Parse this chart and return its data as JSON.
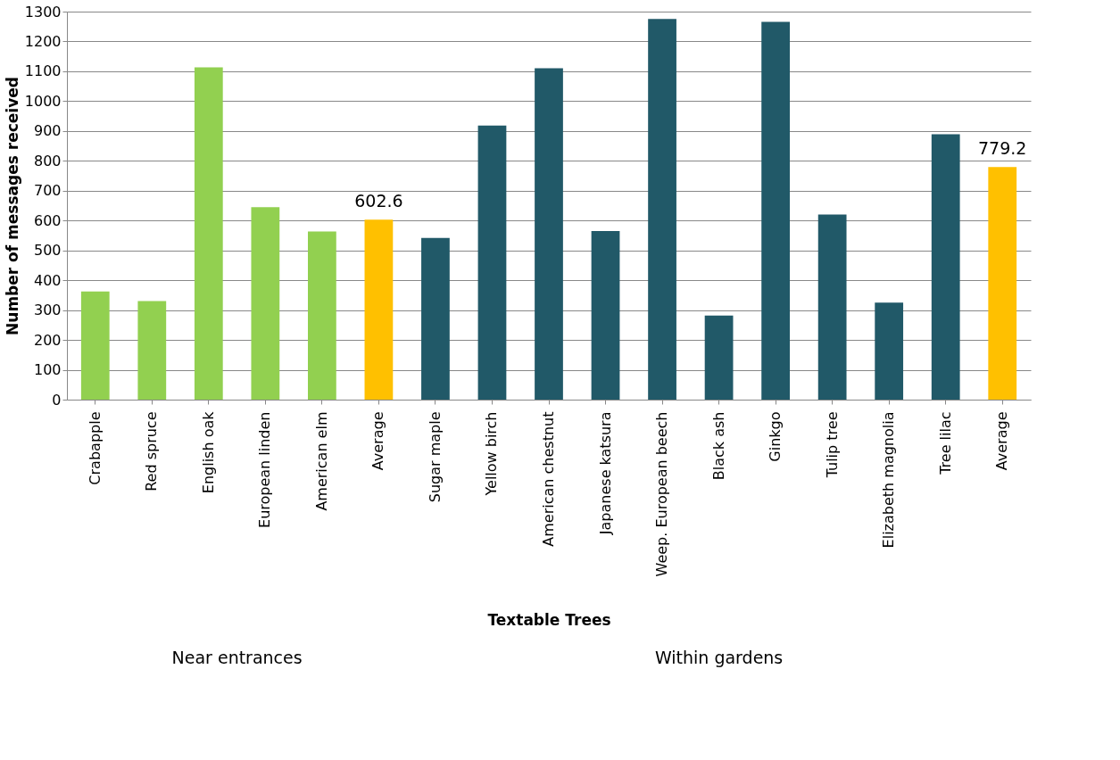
{
  "chart_data": {
    "type": "bar",
    "xlabel": "Textable Trees",
    "ylabel": "Number of messages received",
    "categories": [
      "Crabapple",
      "Red spruce",
      "English oak",
      "European linden",
      "American elm",
      "Average",
      "Sugar maple",
      "Yellow birch",
      "American chestnut",
      "Japanese katsura",
      "Weep. European beech",
      "Black ash",
      "Ginkgo",
      "Tulip tree",
      "Elizabeth magnolia",
      "Tree lilac",
      "Average"
    ],
    "values": [
      362,
      330,
      1113,
      645,
      563,
      602.6,
      542,
      918,
      1110,
      565,
      1275,
      282,
      1266,
      620,
      325,
      889,
      779.2
    ],
    "colors": [
      "#92d050",
      "#92d050",
      "#92d050",
      "#92d050",
      "#92d050",
      "#ffc000",
      "#215968",
      "#215968",
      "#215968",
      "#215968",
      "#215968",
      "#215968",
      "#215968",
      "#215968",
      "#215968",
      "#215968",
      "#ffc000"
    ],
    "value_labels": [
      null,
      null,
      null,
      null,
      null,
      "602.6",
      null,
      null,
      null,
      null,
      null,
      null,
      null,
      null,
      null,
      null,
      "779.2"
    ],
    "annotations": [
      "Near entrances",
      "Within gardens"
    ],
    "ylim": [
      0,
      1300
    ],
    "yticks": [
      0,
      100,
      200,
      300,
      400,
      500,
      600,
      700,
      800,
      900,
      1000,
      1100,
      1200,
      1300
    ],
    "grid": "y"
  }
}
